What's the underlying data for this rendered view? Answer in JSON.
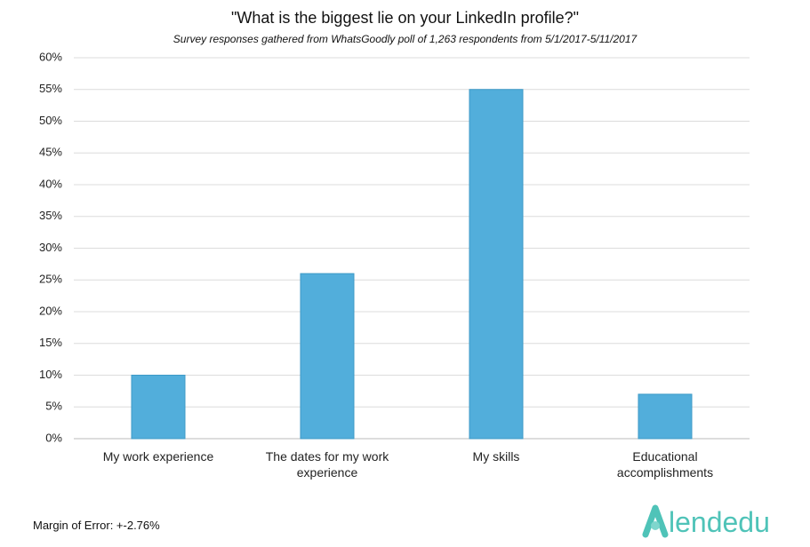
{
  "chart_data": {
    "type": "bar",
    "title": "\"What is the biggest lie on your LinkedIn profile?\"",
    "subtitle": "Survey responses gathered from WhatsGoodly poll of 1,263 respondents from 5/1/2017-5/11/2017",
    "categories": [
      "My work experience",
      "The dates for my work experience",
      "My skills",
      "Educational accomplishments"
    ],
    "values": [
      10,
      26,
      55,
      7
    ],
    "color": "#52aedb",
    "ylim": [
      0,
      60
    ],
    "yticks": [
      {
        "value": 0,
        "label": "0%"
      },
      {
        "value": 5,
        "label": "5%"
      },
      {
        "value": 10,
        "label": "10%"
      },
      {
        "value": 15,
        "label": "15%"
      },
      {
        "value": 20,
        "label": "20%"
      },
      {
        "value": 25,
        "label": "25%"
      },
      {
        "value": 30,
        "label": "30%"
      },
      {
        "value": 35,
        "label": "35%"
      },
      {
        "value": 40,
        "label": "40%"
      },
      {
        "value": 45,
        "label": "45%"
      },
      {
        "value": 50,
        "label": "50%"
      },
      {
        "value": 55,
        "label": "55%"
      },
      {
        "value": 60,
        "label": "60%"
      }
    ],
    "grid": true,
    "footnote": "Margin of Error: +-2.76%",
    "logo": "lendedu"
  }
}
